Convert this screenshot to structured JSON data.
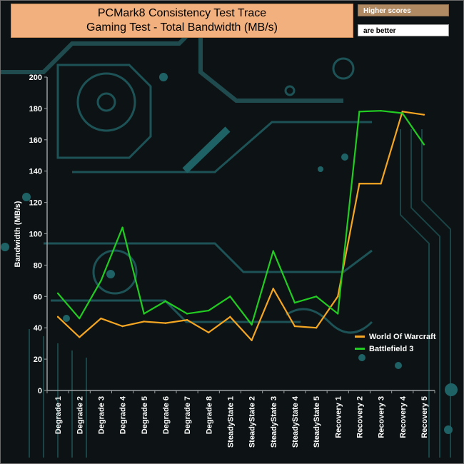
{
  "title_line1": "PCMark8 Consistency Test Trace",
  "title_line2": "Gaming Test - Total Bandwidth (MB/s)",
  "badge_higher": "Higher scores",
  "badge_better": "are better",
  "colors": {
    "world_of_warcraft": "#f5a623",
    "battlefield_3": "#22cc22",
    "title_bg": "#f2b07e",
    "background": "#0d1314"
  },
  "chart_data": {
    "type": "line",
    "ylabel": "Bandwidth (MB/s)",
    "xlabel": "",
    "ylim": [
      0,
      200
    ],
    "yticks": [
      0,
      20,
      40,
      60,
      80,
      100,
      120,
      140,
      160,
      180,
      200
    ],
    "grid": false,
    "legend_position": "bottom-right",
    "categories": [
      "Degrade 1",
      "Degrade 2",
      "Degrade 3",
      "Degrade 4",
      "Degrade 5",
      "Degrade 6",
      "Degrade 7",
      "Degrade 8",
      "SteadyState 1",
      "SteadyState 2",
      "SteadyState 3",
      "SteadyState 4",
      "SteadyState 5",
      "Recovery 1",
      "Recovery 2",
      "Recovery 3",
      "Recovery 4",
      "Recovery 5"
    ],
    "series": [
      {
        "name": "World Of Warcraft",
        "values": [
          47,
          34,
          46,
          41,
          44,
          43,
          45,
          37,
          47,
          32,
          65,
          41,
          40,
          60,
          132,
          132,
          178,
          176
        ]
      },
      {
        "name": "Battlefield 3",
        "values": [
          62,
          46,
          70,
          104,
          49,
          57,
          49,
          51,
          60,
          42,
          89,
          56,
          60,
          49,
          178,
          178.5,
          177,
          157
        ]
      }
    ]
  }
}
